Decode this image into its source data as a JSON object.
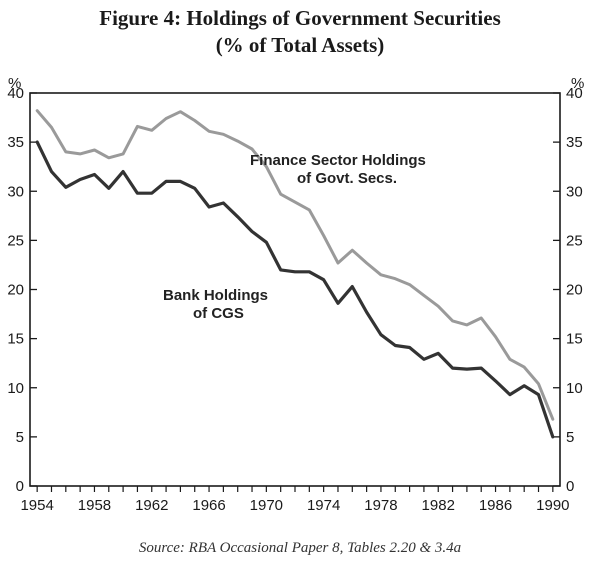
{
  "title_line1": "Figure 4: Holdings of Government Securities",
  "title_line2": "(% of Total Assets)",
  "source": "Source: RBA Occasional Paper 8, Tables 2.20 & 3.4a",
  "chart_data": {
    "type": "line",
    "title": "Figure 4: Holdings of Government Securities (% of Total Assets)",
    "xlabel": "",
    "ylabel": "%",
    "y_unit_left": "%",
    "y_unit_right": "%",
    "xlim": [
      1953.5,
      1990.5
    ],
    "ylim": [
      0,
      40
    ],
    "x_ticks": [
      1954,
      1958,
      1962,
      1966,
      1970,
      1974,
      1978,
      1982,
      1986,
      1990
    ],
    "y_ticks": [
      0,
      5,
      10,
      15,
      20,
      25,
      30,
      35,
      40
    ],
    "x": [
      1954,
      1955,
      1956,
      1957,
      1958,
      1959,
      1960,
      1961,
      1962,
      1963,
      1964,
      1965,
      1966,
      1967,
      1968,
      1969,
      1970,
      1971,
      1972,
      1973,
      1974,
      1975,
      1976,
      1977,
      1978,
      1979,
      1980,
      1981,
      1982,
      1983,
      1984,
      1985,
      1986,
      1987,
      1988,
      1989,
      1990
    ],
    "series": [
      {
        "name": "Finance Sector Holdings of Govt. Secs.",
        "label_line1": "Finance Sector Holdings",
        "label_line2": "of Govt. Secs.",
        "color": "#9a9a9a",
        "values": [
          38.2,
          36.5,
          34.0,
          33.8,
          34.2,
          33.4,
          33.8,
          36.6,
          36.2,
          37.4,
          38.1,
          37.2,
          36.1,
          35.8,
          35.1,
          34.3,
          32.5,
          29.7,
          28.9,
          28.1,
          25.5,
          22.7,
          24.0,
          22.7,
          21.5,
          21.1,
          20.5,
          19.4,
          18.3,
          16.8,
          16.4,
          17.1,
          15.2,
          12.9,
          12.1,
          10.4,
          6.8
        ]
      },
      {
        "name": "Bank Holdings of CGS",
        "label_line1": "Bank Holdings",
        "label_line2": "of CGS",
        "color": "#333333",
        "values": [
          35.0,
          32.0,
          30.4,
          31.2,
          31.7,
          30.3,
          32.0,
          29.8,
          29.8,
          31.0,
          31.0,
          30.3,
          28.4,
          28.8,
          27.4,
          25.9,
          24.8,
          22.0,
          21.8,
          21.8,
          21.0,
          18.6,
          20.3,
          17.7,
          15.4,
          14.3,
          14.1,
          12.9,
          13.5,
          12.0,
          11.9,
          12.0,
          10.7,
          9.3,
          10.2,
          9.3,
          5.0
        ]
      }
    ]
  }
}
